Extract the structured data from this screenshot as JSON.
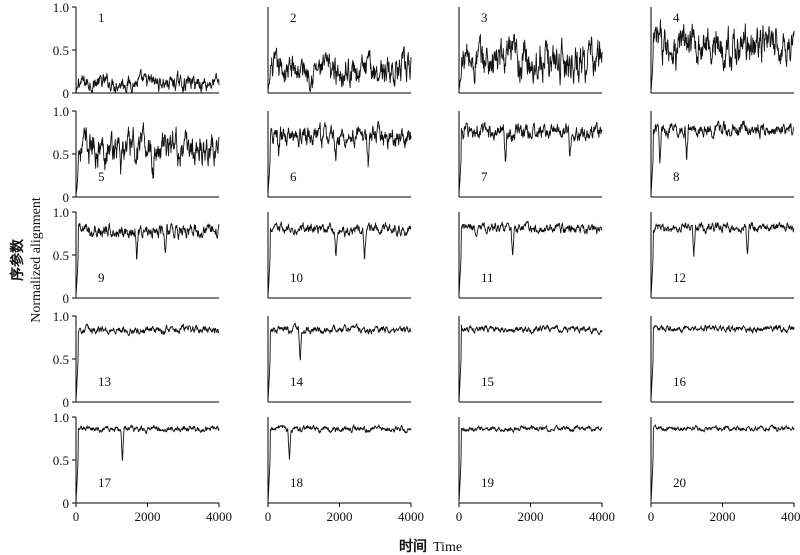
{
  "figure": {
    "ylabel_cn": "序参数",
    "ylabel_en": "Normalized alignment",
    "xlabel_cn": "时间",
    "xlabel_en": "Time"
  },
  "chart_data": {
    "type": "line",
    "layout": "small-multiples 5 rows x 4 columns",
    "xlim": [
      0,
      4000
    ],
    "ylim": [
      0,
      1.0
    ],
    "x_ticks": [
      "0",
      "2000",
      "4000"
    ],
    "y_ticks": [
      "0",
      "0.5",
      "1.0"
    ],
    "xtick_rows": "bottom row only",
    "ytick_columns": "left column only",
    "panels": [
      {
        "id": "1",
        "mean": 0.12,
        "noise": 0.06,
        "dips": []
      },
      {
        "id": "2",
        "mean": 0.27,
        "noise": 0.11,
        "dips": []
      },
      {
        "id": "3",
        "mean": 0.38,
        "noise": 0.15,
        "dips": [
          400,
          2400
        ]
      },
      {
        "id": "4",
        "mean": 0.56,
        "noise": 0.14,
        "dips": [
          700,
          2250,
          3450
        ]
      },
      {
        "id": "5",
        "mean": 0.58,
        "noise": 0.12,
        "dips": [
          1250,
          2150,
          3000
        ]
      },
      {
        "id": "6",
        "mean": 0.7,
        "noise": 0.08,
        "dips": [
          300,
          1900,
          2800
        ]
      },
      {
        "id": "7",
        "mean": 0.76,
        "noise": 0.06,
        "dips": [
          1300,
          3100
        ]
      },
      {
        "id": "8",
        "mean": 0.78,
        "noise": 0.05,
        "dips": [
          250,
          1000
        ]
      },
      {
        "id": "9",
        "mean": 0.78,
        "noise": 0.05,
        "dips": [
          1700,
          2500
        ]
      },
      {
        "id": "10",
        "mean": 0.8,
        "noise": 0.04,
        "dips": [
          1900,
          2700
        ]
      },
      {
        "id": "11",
        "mean": 0.81,
        "noise": 0.035,
        "dips": [
          1500
        ]
      },
      {
        "id": "12",
        "mean": 0.82,
        "noise": 0.035,
        "dips": [
          1200,
          2700
        ]
      },
      {
        "id": "13",
        "mean": 0.84,
        "noise": 0.028,
        "dips": []
      },
      {
        "id": "14",
        "mean": 0.84,
        "noise": 0.028,
        "dips": [
          900
        ]
      },
      {
        "id": "15",
        "mean": 0.85,
        "noise": 0.025,
        "dips": []
      },
      {
        "id": "16",
        "mean": 0.85,
        "noise": 0.025,
        "dips": []
      },
      {
        "id": "17",
        "mean": 0.86,
        "noise": 0.022,
        "dips": [
          1300
        ]
      },
      {
        "id": "18",
        "mean": 0.86,
        "noise": 0.022,
        "dips": [
          600
        ]
      },
      {
        "id": "19",
        "mean": 0.86,
        "noise": 0.02,
        "dips": []
      },
      {
        "id": "20",
        "mean": 0.87,
        "noise": 0.02,
        "dips": []
      }
    ]
  }
}
